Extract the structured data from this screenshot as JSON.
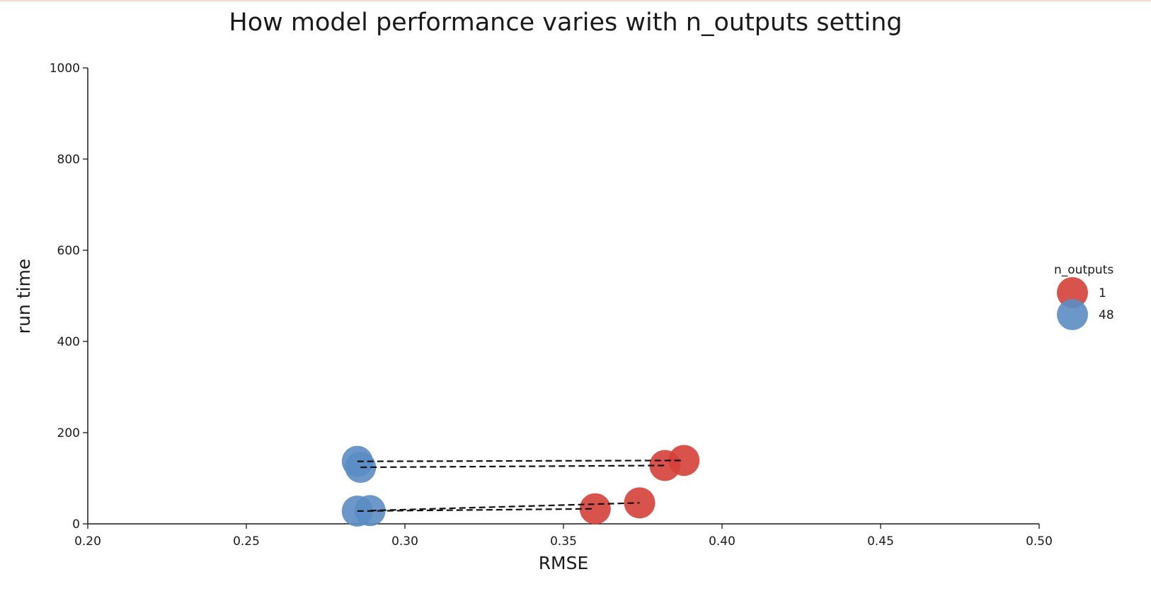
{
  "chart_data": {
    "type": "scatter",
    "title": "How model performance varies with n_outputs setting",
    "xlabel": "RMSE",
    "ylabel": "run time",
    "xlim": [
      0.2,
      0.5
    ],
    "ylim": [
      0,
      1000
    ],
    "xticks": [
      "0.20",
      "0.25",
      "0.30",
      "0.35",
      "0.40",
      "0.45",
      "0.50"
    ],
    "yticks": [
      "0",
      "200",
      "400",
      "600",
      "800",
      "1000"
    ],
    "grid": false,
    "legend": {
      "title": "n_outputs",
      "placement": "right",
      "entries": [
        "1",
        "48"
      ]
    },
    "series": [
      {
        "name": "1",
        "color": "#d5403a",
        "points": [
          {
            "x": 0.388,
            "y": 139
          },
          {
            "x": 0.382,
            "y": 128
          },
          {
            "x": 0.374,
            "y": 46
          },
          {
            "x": 0.36,
            "y": 33
          }
        ]
      },
      {
        "name": "48",
        "color": "#5b8cc3",
        "points": [
          {
            "x": 0.285,
            "y": 137
          },
          {
            "x": 0.286,
            "y": 124
          },
          {
            "x": 0.289,
            "y": 29
          },
          {
            "x": 0.285,
            "y": 28
          }
        ]
      }
    ],
    "connectors": [
      {
        "from": {
          "x": 0.285,
          "y": 137
        },
        "to": {
          "x": 0.388,
          "y": 139
        }
      },
      {
        "from": {
          "x": 0.286,
          "y": 124
        },
        "to": {
          "x": 0.382,
          "y": 128
        }
      },
      {
        "from": {
          "x": 0.289,
          "y": 29
        },
        "to": {
          "x": 0.374,
          "y": 46
        }
      },
      {
        "from": {
          "x": 0.285,
          "y": 28
        },
        "to": {
          "x": 0.36,
          "y": 33
        }
      }
    ]
  }
}
